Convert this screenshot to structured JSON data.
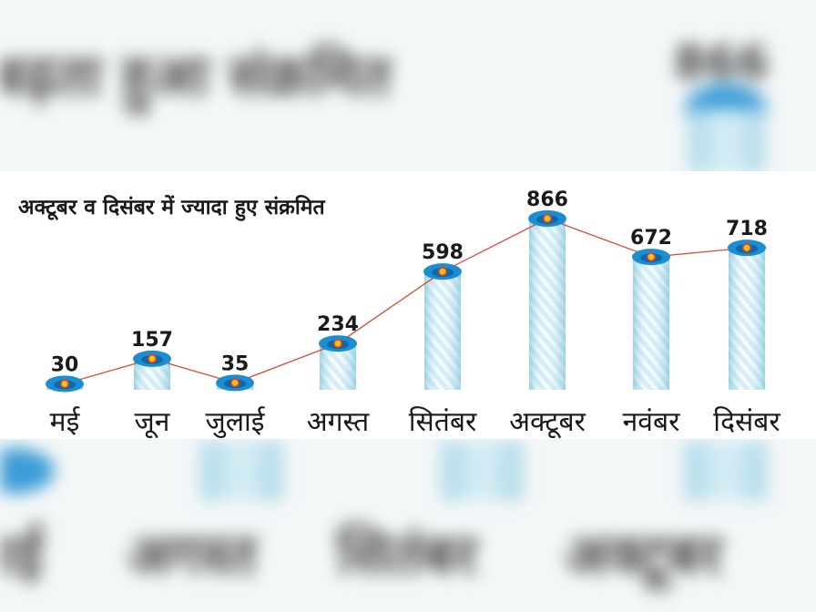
{
  "chart_data": {
    "type": "bar",
    "title": "अक्टूबर व दिसंबर में ज्यादा हुए संक्रमित",
    "xlabel": "",
    "ylabel": "",
    "categories": [
      "मई",
      "जून",
      "जुलाई",
      "अगस्त",
      "सितंबर",
      "अक्टूबर",
      "नवंबर",
      "दिसंबर"
    ],
    "values": [
      30,
      157,
      35,
      234,
      598,
      866,
      672,
      718
    ],
    "ylim": [
      0,
      866
    ],
    "grid": false,
    "legend": "none",
    "trend_line": true
  },
  "colors": {
    "bar_light": "#d4edf6",
    "bar_mid": "#7fc6df",
    "cap": "#1b8dd1",
    "cap_dark": "#0e6aa6",
    "marker_fill": "#f2c21b",
    "marker_ring": "#e53a2b",
    "trend_line": "#e0463a",
    "text": "#1a1a1a"
  },
  "background_blur": {
    "headline": "बढ़ता हुआ संक्रमित",
    "value": "866",
    "month_labels": [
      "मई",
      "अगस्त",
      "सितंबर",
      "अक्टूबर"
    ]
  }
}
